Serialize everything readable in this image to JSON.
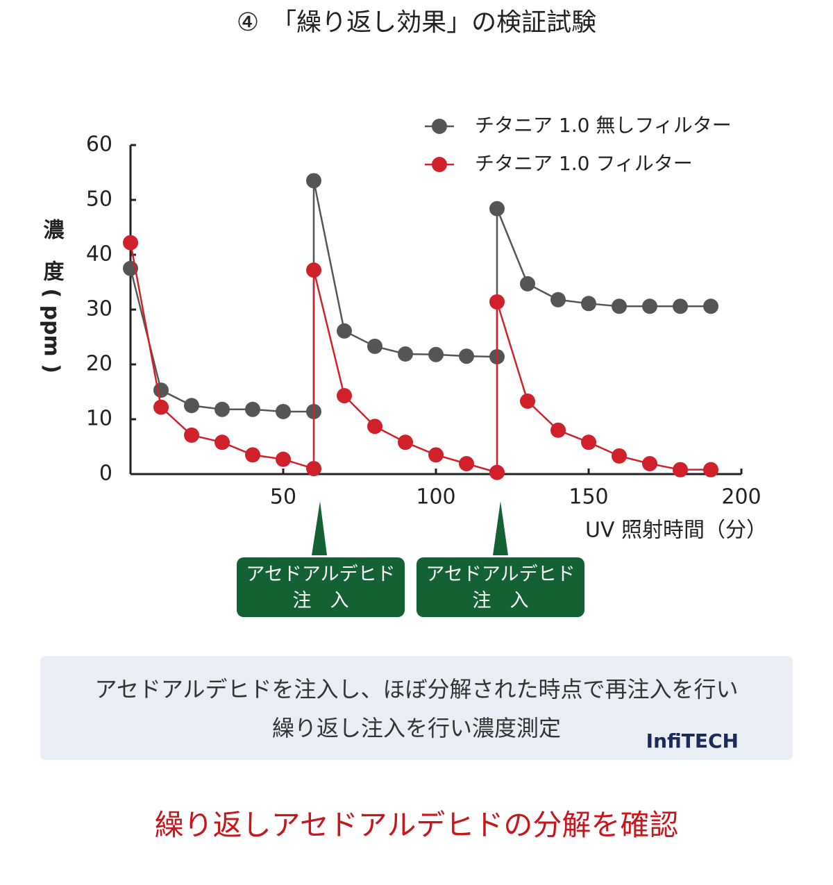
{
  "chart_data": {
    "type": "line",
    "title": "④　「繰り返し効果」の検証試験",
    "y_label": "濃　度 ( ppm )",
    "x_label": "UV 照射時間（分）",
    "xlim": [
      0,
      200
    ],
    "xticks": [
      50,
      100,
      150,
      200
    ],
    "ylim": [
      0,
      60
    ],
    "yticks": [
      0,
      10,
      20,
      30,
      40,
      50,
      60
    ],
    "legend": "top-right",
    "series": [
      {
        "name": "チタニア 1.0 無しフィルター",
        "color": "#555555",
        "x": [
          0,
          10,
          20,
          30,
          40,
          50,
          60,
          60,
          70,
          80,
          90,
          100,
          110,
          120,
          120,
          130,
          140,
          150,
          160,
          170,
          180,
          190
        ],
        "values": [
          37.5,
          15.3,
          12.5,
          11.8,
          11.8,
          11.4,
          11.4,
          53.5,
          26.1,
          23.3,
          21.9,
          21.8,
          21.5,
          21.4,
          48.4,
          34.7,
          31.8,
          31.1,
          30.6,
          30.6,
          30.6,
          30.6
        ]
      },
      {
        "name": "チタニア 1.0 フィルター",
        "color": "#d0202a",
        "x": [
          0,
          10,
          20,
          30,
          40,
          50,
          60,
          60,
          70,
          80,
          90,
          100,
          110,
          120,
          120,
          130,
          140,
          150,
          160,
          170,
          180,
          190
        ],
        "values": [
          42.2,
          12.2,
          7.1,
          5.8,
          3.5,
          2.7,
          1.0,
          37.2,
          14.3,
          8.7,
          5.8,
          3.5,
          1.9,
          0.3,
          31.4,
          13.3,
          8.0,
          5.8,
          3.3,
          1.9,
          0.8,
          0.8
        ]
      }
    ],
    "annotations": [
      {
        "lines": [
          "アセドアルデヒド",
          "注　入"
        ]
      },
      {
        "lines": [
          "アセドアルデヒド",
          "注　入"
        ]
      }
    ],
    "note": [
      "アセドアルデヒドを注入し、ほぼ分解された時点で再注入を行い",
      "繰り返し注入を行い濃度測定"
    ],
    "logo": "InfiTECH",
    "conclusion": "繰り返しアセドアルデヒドの分解を確認"
  }
}
